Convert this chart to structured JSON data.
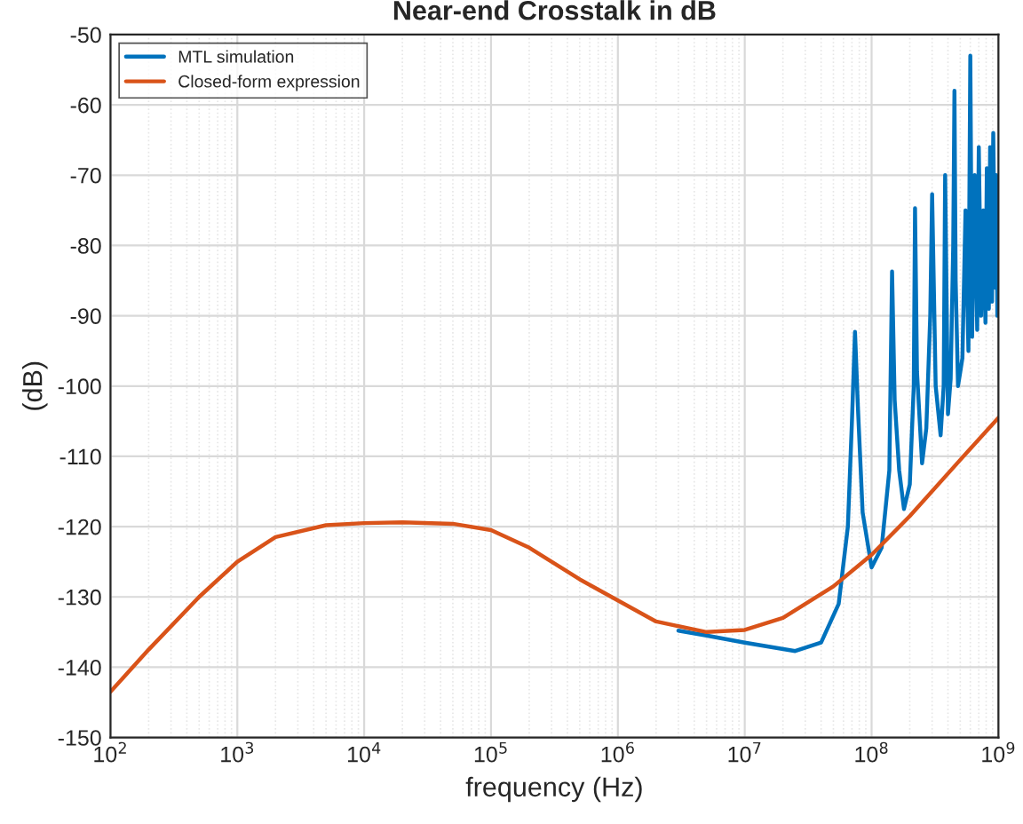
{
  "chart_data": {
    "type": "line",
    "title": "Near-end Crosstalk in dB",
    "xlabel": "frequency (Hz)",
    "ylabel": "(dB)",
    "log": "x",
    "grid": true,
    "legend": "top left",
    "xlim": [
      100,
      1000000000
    ],
    "ylim": [
      -150,
      -50
    ],
    "xticks": [
      {
        "value": 100,
        "label": "10$^{2}$"
      },
      {
        "value": 1000,
        "label": "10$^{3}$"
      },
      {
        "value": 10000,
        "label": "10$^{4}$"
      },
      {
        "value": 100000,
        "label": "10$^{5}$"
      },
      {
        "value": 1000000,
        "label": "10$^{6}$"
      },
      {
        "value": 10000000,
        "label": "10$^{7}$"
      },
      {
        "value": 100000000,
        "label": "10$^{8}$"
      },
      {
        "value": 1000000000,
        "label": "10$^{9}$"
      }
    ],
    "yticks": [
      -150,
      -140,
      -130,
      -120,
      -110,
      -100,
      -90,
      -80,
      -70,
      -60,
      -50
    ],
    "series": [
      {
        "name": "MTL simulation",
        "color": "#0072bd",
        "x": [
          3000000,
          5000000,
          10000000,
          25000000,
          40000000,
          55000000,
          65000000,
          70000000,
          74000000,
          78000000,
          85000000,
          100000000,
          120000000,
          138000000,
          145000000,
          152000000,
          165000000,
          180000000,
          200000000,
          215000000,
          220000000,
          228000000,
          250000000,
          270000000,
          290000000,
          300000000,
          320000000,
          350000000,
          370000000,
          380000000,
          400000000,
          420000000,
          440000000,
          450000000,
          460000000,
          480000000,
          500000000,
          520000000,
          550000000,
          580000000,
          600000000,
          620000000,
          650000000,
          680000000,
          700000000,
          730000000,
          760000000,
          790000000,
          810000000,
          840000000,
          860000000,
          890000000,
          910000000,
          940000000,
          960000000,
          980000000,
          1000000000
        ],
        "values": [
          -134.8,
          -135.5,
          -136.5,
          -137.7,
          -136.5,
          -131,
          -120,
          -105,
          -92.3,
          -103,
          -118,
          -125.8,
          -123,
          -112,
          -83.7,
          -102,
          -112,
          -117.5,
          -114,
          -100,
          -74.7,
          -98,
          -111,
          -106,
          -90,
          -72.7,
          -100,
          -107,
          -100,
          -70,
          -104,
          -99,
          -80,
          -58,
          -85,
          -100,
          -98,
          -96,
          -75,
          -95,
          -53,
          -93,
          -70,
          -92,
          -66,
          -90,
          -75,
          -91,
          -69,
          -89,
          -66,
          -88,
          -64,
          -86,
          -70,
          -90,
          -85
        ]
      },
      {
        "name": "Closed-form expression",
        "color": "#d95319",
        "x": [
          100,
          200,
          500,
          1000,
          2000,
          5000,
          10000,
          20000,
          50000,
          100000,
          200000,
          500000,
          1000000,
          2000000,
          5000000,
          10000000,
          20000000,
          50000000,
          100000000,
          200000000,
          500000000,
          1000000000
        ],
        "values": [
          -143.5,
          -137.5,
          -130,
          -125,
          -121.5,
          -119.8,
          -119.5,
          -119.4,
          -119.6,
          -120.5,
          -123,
          -127.5,
          -130.5,
          -133.5,
          -135,
          -134.7,
          -133,
          -128.5,
          -124,
          -118.5,
          -110.5,
          -104.5
        ]
      }
    ]
  }
}
